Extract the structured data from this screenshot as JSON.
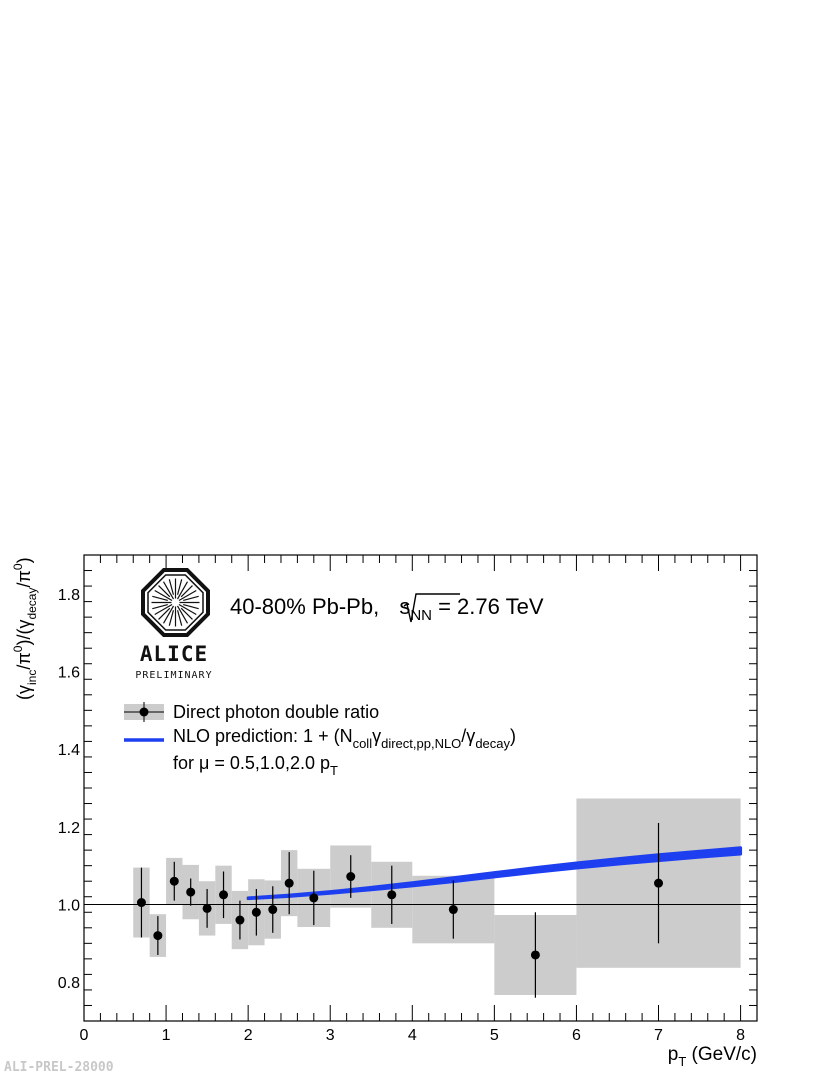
{
  "footer_label": "ALI-PREL-28000",
  "logo": {
    "word": "ALICE",
    "subtitle": "PRELIMINARY"
  },
  "energy_label": {
    "prefix": "40-80%  Pb-Pb, ",
    "s": "s",
    "nn": "NN",
    "suffix": " = 2.76 TeV"
  },
  "legend": {
    "data_label": "Direct photon double ratio",
    "nlo_main": "NLO prediction: 1 + (N",
    "nlo_coll": "coll",
    "nlo_gamma": "γ",
    "nlo_sub1": "direct,pp,NLO",
    "nlo_slash": "/γ",
    "nlo_sub2": "decay",
    "nlo_close": ")",
    "mu_text": "for μ = 0.5,1.0,2.0 p",
    "mu_sub": "T"
  },
  "colors": {
    "band": "#cccccc",
    "nlo": "#1d3ff0",
    "points": "#000000"
  },
  "chart_data": {
    "type": "scatter",
    "xlim": [
      0,
      8.2
    ],
    "ylim": [
      0.7,
      1.9
    ],
    "x_ticks": [
      0,
      1,
      2,
      3,
      4,
      5,
      6,
      7,
      8
    ],
    "y_ticks": [
      0.8,
      1.0,
      1.2,
      1.4,
      1.6,
      1.8
    ],
    "x_tick_labels": [
      "0",
      "1",
      "2",
      "3",
      "4",
      "5",
      "6",
      "7",
      "8"
    ],
    "y_tick_labels": [
      "0.8",
      "1.0",
      "1.2",
      "1.4",
      "1.6",
      "1.8"
    ],
    "xlabel": {
      "p": "p",
      "T": "T",
      "rest": " (GeV/c)"
    },
    "ylabel": {
      "p1": "(γ",
      "s1": "inc",
      "p2": "/π",
      "sup1": "0",
      "p3": ")/(γ",
      "s2": "decay",
      "p4": "/π",
      "sup2": "0",
      "p5": ")"
    },
    "reference_line": 1.0,
    "series": [
      {
        "name": "Direct photon double ratio",
        "points": [
          {
            "x": 0.7,
            "y": 1.005,
            "stat": 0.09,
            "sys_lo": 0.6,
            "sys_hi": 0.8,
            "sys": 0.09
          },
          {
            "x": 0.9,
            "y": 0.92,
            "stat": 0.05,
            "sys_lo": 0.8,
            "sys_hi": 1.0,
            "sys": 0.055
          },
          {
            "x": 1.1,
            "y": 1.06,
            "stat": 0.05,
            "sys_lo": 1.0,
            "sys_hi": 1.2,
            "sys": 0.06
          },
          {
            "x": 1.3,
            "y": 1.032,
            "stat": 0.035,
            "sys_lo": 1.2,
            "sys_hi": 1.4,
            "sys": 0.07
          },
          {
            "x": 1.5,
            "y": 0.99,
            "stat": 0.05,
            "sys_lo": 1.4,
            "sys_hi": 1.6,
            "sys": 0.07
          },
          {
            "x": 1.7,
            "y": 1.025,
            "stat": 0.06,
            "sys_lo": 1.6,
            "sys_hi": 1.8,
            "sys": 0.075
          },
          {
            "x": 1.9,
            "y": 0.96,
            "stat": 0.05,
            "sys_lo": 1.8,
            "sys_hi": 2.0,
            "sys": 0.075
          },
          {
            "x": 2.1,
            "y": 0.98,
            "stat": 0.06,
            "sys_lo": 2.0,
            "sys_hi": 2.2,
            "sys": 0.085
          },
          {
            "x": 2.3,
            "y": 0.987,
            "stat": 0.06,
            "sys_lo": 2.2,
            "sys_hi": 2.4,
            "sys": 0.075
          },
          {
            "x": 2.5,
            "y": 1.055,
            "stat": 0.08,
            "sys_lo": 2.4,
            "sys_hi": 2.6,
            "sys": 0.085
          },
          {
            "x": 2.8,
            "y": 1.017,
            "stat": 0.07,
            "sys_lo": 2.6,
            "sys_hi": 3.0,
            "sys": 0.075
          },
          {
            "x": 3.25,
            "y": 1.072,
            "stat": 0.055,
            "sys_lo": 3.0,
            "sys_hi": 3.5,
            "sys": 0.08
          },
          {
            "x": 3.75,
            "y": 1.025,
            "stat": 0.075,
            "sys_lo": 3.5,
            "sys_hi": 4.0,
            "sys": 0.085
          },
          {
            "x": 4.5,
            "y": 0.987,
            "stat": 0.075,
            "sys_lo": 4.0,
            "sys_hi": 5.0,
            "sys": 0.087
          },
          {
            "x": 5.5,
            "y": 0.87,
            "stat": 0.11,
            "sys_lo": 5.0,
            "sys_hi": 6.0,
            "sys": 0.103
          },
          {
            "x": 7.0,
            "y": 1.055,
            "stat": 0.155,
            "sys_lo": 6.0,
            "sys_hi": 8.0,
            "sys": 0.218
          }
        ]
      },
      {
        "name": "NLO prediction: 1 + (Ncollγdirect,pp,NLO/γdecay) for μ = 0.5,1.0,2.0 pT",
        "type": "band",
        "x": [
          2.0,
          2.5,
          3.0,
          3.5,
          4.0,
          4.5,
          5.0,
          5.5,
          6.0,
          6.5,
          7.0,
          7.5,
          8.0
        ],
        "y_low": [
          1.015,
          1.021,
          1.029,
          1.038,
          1.048,
          1.059,
          1.071,
          1.083,
          1.094,
          1.104,
          1.113,
          1.122,
          1.13
        ],
        "y_high": [
          1.017,
          1.024,
          1.033,
          1.044,
          1.056,
          1.069,
          1.082,
          1.095,
          1.107,
          1.118,
          1.128,
          1.137,
          1.146
        ]
      }
    ]
  }
}
